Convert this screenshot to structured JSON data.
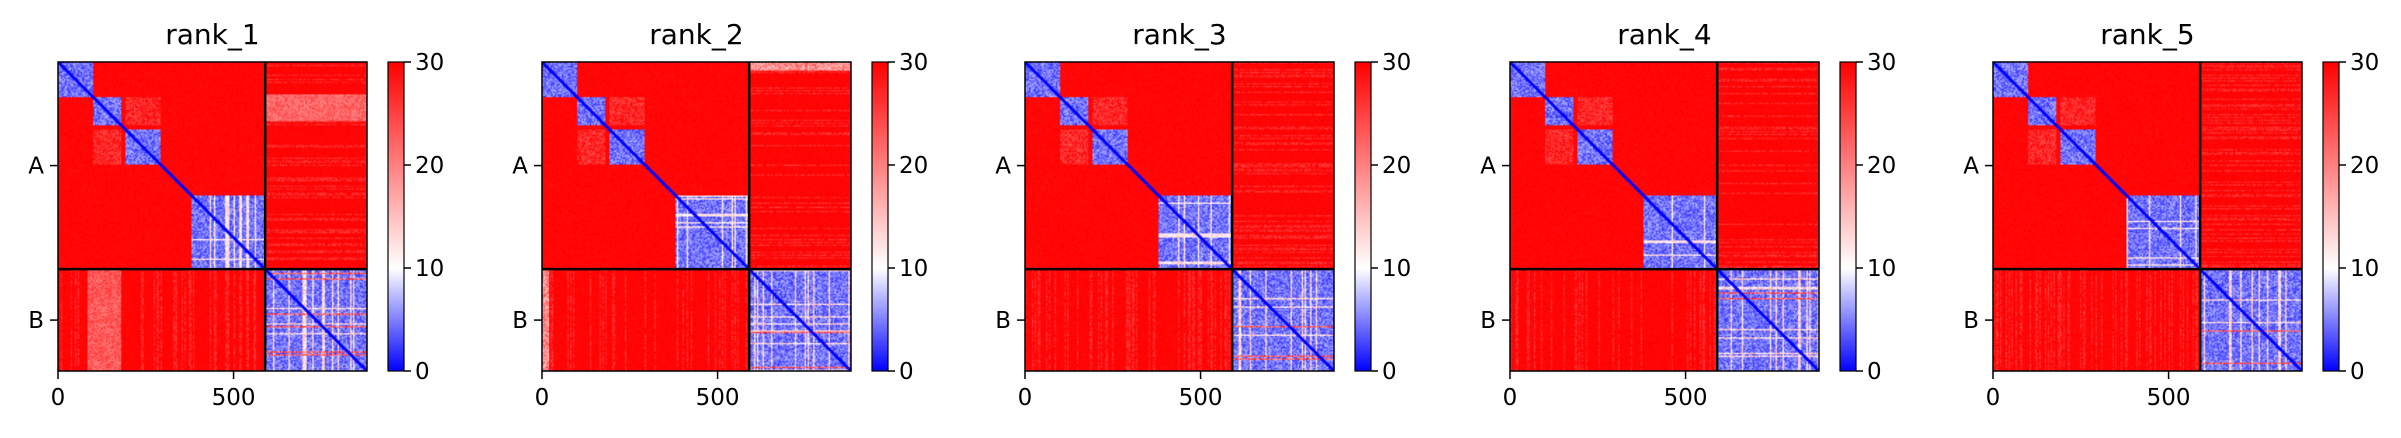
{
  "chart_data": {
    "type": "heatmap",
    "panels": [
      {
        "title": "rank_1",
        "variant": 0
      },
      {
        "title": "rank_2",
        "variant": 1
      },
      {
        "title": "rank_3",
        "variant": 2
      },
      {
        "title": "rank_4",
        "variant": 3
      },
      {
        "title": "rank_5",
        "variant": 4
      }
    ],
    "chains": [
      {
        "label": "A",
        "start": 0,
        "end": 590
      },
      {
        "label": "B",
        "start": 590,
        "end": 880
      }
    ],
    "x_range": [
      0,
      880
    ],
    "x_ticks": [
      0,
      500
    ],
    "x_tick_labels": [
      "0",
      "500"
    ],
    "colorbar": {
      "min": 0,
      "max": 30,
      "ticks": [
        0,
        10,
        20,
        30
      ],
      "tick_labels": [
        "0",
        "10",
        "20",
        "30"
      ],
      "colors": {
        "low": "#0000ff",
        "mid": "#ffffff",
        "high": "#ff0000"
      }
    },
    "domains_A": [
      {
        "start": 0,
        "end": 100
      },
      {
        "start": 100,
        "end": 180
      },
      {
        "start": 190,
        "end": 290
      },
      {
        "start": 380,
        "end": 590
      }
    ],
    "xlabel": "",
    "ylabel": "",
    "grid": false,
    "legend": "none"
  }
}
